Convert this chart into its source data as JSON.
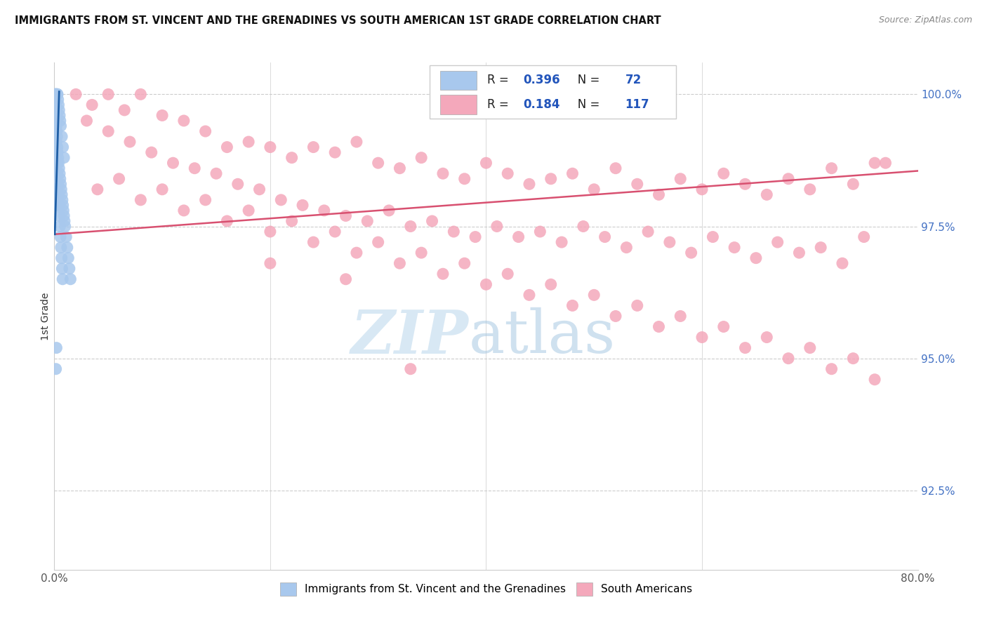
{
  "title": "IMMIGRANTS FROM ST. VINCENT AND THE GRENADINES VS SOUTH AMERICAN 1ST GRADE CORRELATION CHART",
  "source": "Source: ZipAtlas.com",
  "ylabel": "1st Grade",
  "blue_R": 0.396,
  "blue_N": 72,
  "pink_R": 0.184,
  "pink_N": 117,
  "blue_color": "#A8C8ED",
  "pink_color": "#F4A8BB",
  "blue_edge_color": "#7AAAD0",
  "pink_edge_color": "#E888A0",
  "blue_line_color": "#1F5FA6",
  "pink_line_color": "#D85070",
  "legend_label_blue": "Immigrants from St. Vincent and the Grenadines",
  "legend_label_pink": "South Americans",
  "xlim": [
    0,
    80
  ],
  "ylim": [
    91.0,
    100.6
  ],
  "yticks": [
    92.5,
    95.0,
    97.5,
    100.0
  ],
  "ytick_labels": [
    "92.5%",
    "95.0%",
    "97.5%",
    "100.0%"
  ],
  "grid_color": "#CCCCCC",
  "blue_scatter_x": [
    0.05,
    0.08,
    0.1,
    0.12,
    0.15,
    0.18,
    0.2,
    0.22,
    0.25,
    0.28,
    0.3,
    0.35,
    0.4,
    0.45,
    0.5,
    0.55,
    0.6,
    0.7,
    0.8,
    0.9,
    0.1,
    0.12,
    0.15,
    0.18,
    0.2,
    0.22,
    0.25,
    0.28,
    0.3,
    0.35,
    0.4,
    0.45,
    0.5,
    0.55,
    0.6,
    0.65,
    0.7,
    0.75,
    0.8,
    0.85,
    0.9,
    0.95,
    1.0,
    1.1,
    1.2,
    1.3,
    1.4,
    1.5,
    0.07,
    0.09,
    0.11,
    0.13,
    0.16,
    0.19,
    0.21,
    0.24,
    0.27,
    0.32,
    0.37,
    0.42,
    0.47,
    0.52,
    0.57,
    0.62,
    0.67,
    0.72,
    0.77,
    0.05,
    0.08,
    0.1,
    0.15,
    0.2
  ],
  "blue_scatter_y": [
    100.0,
    100.0,
    100.0,
    100.0,
    100.0,
    100.0,
    100.0,
    100.0,
    100.0,
    100.0,
    100.0,
    99.9,
    99.8,
    99.7,
    99.6,
    99.5,
    99.4,
    99.2,
    99.0,
    98.8,
    99.8,
    99.7,
    99.6,
    99.5,
    99.4,
    99.3,
    99.2,
    99.0,
    98.9,
    98.8,
    98.7,
    98.6,
    98.5,
    98.4,
    98.3,
    98.2,
    98.1,
    98.0,
    97.9,
    97.8,
    97.7,
    97.6,
    97.5,
    97.3,
    97.1,
    96.9,
    96.7,
    96.5,
    99.9,
    99.8,
    99.7,
    99.5,
    99.3,
    99.1,
    98.9,
    98.7,
    98.5,
    98.3,
    98.1,
    97.9,
    97.7,
    97.5,
    97.3,
    97.1,
    96.9,
    96.7,
    96.5,
    98.5,
    98.2,
    97.9,
    94.8,
    95.2
  ],
  "pink_scatter_x": [
    2.0,
    3.5,
    5.0,
    6.5,
    8.0,
    10.0,
    12.0,
    14.0,
    16.0,
    18.0,
    20.0,
    22.0,
    24.0,
    26.0,
    28.0,
    30.0,
    32.0,
    34.0,
    36.0,
    38.0,
    40.0,
    42.0,
    44.0,
    46.0,
    48.0,
    50.0,
    52.0,
    54.0,
    56.0,
    58.0,
    60.0,
    62.0,
    64.0,
    66.0,
    68.0,
    70.0,
    72.0,
    74.0,
    76.0,
    3.0,
    5.0,
    7.0,
    9.0,
    11.0,
    13.0,
    15.0,
    17.0,
    19.0,
    21.0,
    23.0,
    25.0,
    27.0,
    29.0,
    31.0,
    33.0,
    35.0,
    37.0,
    39.0,
    41.0,
    43.0,
    45.0,
    47.0,
    49.0,
    51.0,
    53.0,
    55.0,
    57.0,
    59.0,
    61.0,
    63.0,
    65.0,
    67.0,
    69.0,
    71.0,
    73.0,
    75.0,
    4.0,
    8.0,
    12.0,
    16.0,
    20.0,
    24.0,
    28.0,
    32.0,
    36.0,
    40.0,
    44.0,
    48.0,
    52.0,
    56.0,
    60.0,
    64.0,
    68.0,
    72.0,
    76.0,
    6.0,
    10.0,
    14.0,
    18.0,
    22.0,
    26.0,
    30.0,
    34.0,
    38.0,
    42.0,
    46.0,
    50.0,
    54.0,
    58.0,
    62.0,
    66.0,
    70.0,
    74.0,
    20.0,
    27.0,
    33.0,
    77.0
  ],
  "pink_scatter_y": [
    100.0,
    99.8,
    100.0,
    99.7,
    100.0,
    99.6,
    99.5,
    99.3,
    99.0,
    99.1,
    99.0,
    98.8,
    99.0,
    98.9,
    99.1,
    98.7,
    98.6,
    98.8,
    98.5,
    98.4,
    98.7,
    98.5,
    98.3,
    98.4,
    98.5,
    98.2,
    98.6,
    98.3,
    98.1,
    98.4,
    98.2,
    98.5,
    98.3,
    98.1,
    98.4,
    98.2,
    98.6,
    98.3,
    98.7,
    99.5,
    99.3,
    99.1,
    98.9,
    98.7,
    98.6,
    98.5,
    98.3,
    98.2,
    98.0,
    97.9,
    97.8,
    97.7,
    97.6,
    97.8,
    97.5,
    97.6,
    97.4,
    97.3,
    97.5,
    97.3,
    97.4,
    97.2,
    97.5,
    97.3,
    97.1,
    97.4,
    97.2,
    97.0,
    97.3,
    97.1,
    96.9,
    97.2,
    97.0,
    97.1,
    96.8,
    97.3,
    98.2,
    98.0,
    97.8,
    97.6,
    97.4,
    97.2,
    97.0,
    96.8,
    96.6,
    96.4,
    96.2,
    96.0,
    95.8,
    95.6,
    95.4,
    95.2,
    95.0,
    94.8,
    94.6,
    98.4,
    98.2,
    98.0,
    97.8,
    97.6,
    97.4,
    97.2,
    97.0,
    96.8,
    96.6,
    96.4,
    96.2,
    96.0,
    95.8,
    95.6,
    95.4,
    95.2,
    95.0,
    96.8,
    96.5,
    94.8,
    98.7
  ],
  "pink_line_x0": 0,
  "pink_line_y0": 97.35,
  "pink_line_x1": 80,
  "pink_line_y1": 98.55,
  "blue_line_x0": 0.05,
  "blue_line_y0": 97.35,
  "blue_line_x1": 0.45,
  "blue_line_y1": 100.05
}
